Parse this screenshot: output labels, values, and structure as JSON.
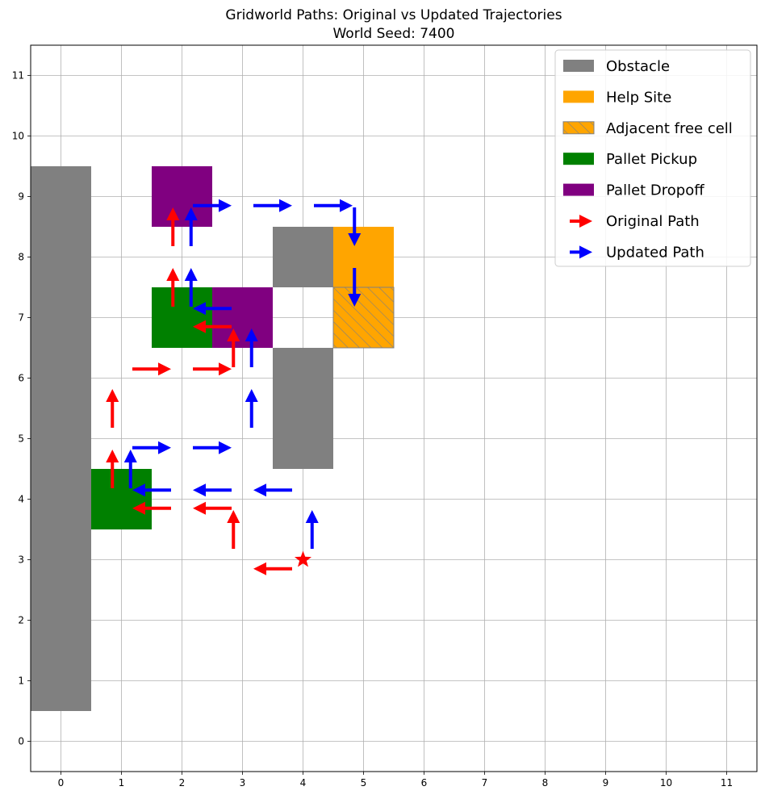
{
  "chart_data": {
    "type": "gridworld",
    "title_line1": "Gridworld Paths: Original vs Updated Trajectories",
    "title_line2": "World Seed: 7400",
    "xlim": [
      -0.5,
      11.5
    ],
    "ylim": [
      -0.5,
      11.5
    ],
    "xticks": [
      "0",
      "1",
      "2",
      "3",
      "4",
      "5",
      "6",
      "7",
      "8",
      "9",
      "10",
      "11"
    ],
    "yticks": [
      "0",
      "1",
      "2",
      "3",
      "4",
      "5",
      "6",
      "7",
      "8",
      "9",
      "10",
      "11"
    ],
    "grid": true,
    "legend_position": "upper-right",
    "colors": {
      "obstacle": "#808080",
      "help_site": "#FFA500",
      "pallet_pickup": "#008000",
      "pallet_dropoff": "#800080",
      "original_path": "#FF0000",
      "updated_path": "#0000FF",
      "grid": "#b0b0b0"
    },
    "legend": [
      {
        "key": "obstacle",
        "label": "Obstacle"
      },
      {
        "key": "help_site",
        "label": "Help Site"
      },
      {
        "key": "adjacent",
        "label": "Adjacent free cell"
      },
      {
        "key": "pallet_pickup",
        "label": "Pallet Pickup"
      },
      {
        "key": "pallet_dropoff",
        "label": "Pallet Dropoff"
      },
      {
        "key": "original_path",
        "label": "Original Path"
      },
      {
        "key": "updated_path",
        "label": "Updated Path"
      }
    ],
    "obstacles": [
      [
        0,
        1
      ],
      [
        0,
        2
      ],
      [
        0,
        3
      ],
      [
        0,
        4
      ],
      [
        0,
        5
      ],
      [
        0,
        6
      ],
      [
        0,
        7
      ],
      [
        0,
        8
      ],
      [
        0,
        9
      ],
      [
        4,
        8
      ],
      [
        4,
        5
      ],
      [
        4,
        6
      ]
    ],
    "help_sites": [
      [
        5,
        8
      ]
    ],
    "adjacent_free_cells": [
      [
        5,
        7
      ]
    ],
    "pallet_pickups": [
      [
        1,
        4
      ],
      [
        2,
        7
      ]
    ],
    "pallet_dropoffs": [
      [
        2,
        9
      ],
      [
        3,
        7
      ]
    ],
    "start_marker": [
      4,
      3
    ],
    "original_path": [
      [
        4,
        3
      ],
      [
        3,
        3
      ],
      [
        3,
        4
      ],
      [
        2,
        4
      ],
      [
        1,
        4
      ],
      [
        1,
        5
      ],
      [
        1,
        6
      ],
      [
        2,
        6
      ],
      [
        3,
        6
      ],
      [
        3,
        7
      ],
      [
        2,
        7
      ],
      [
        2,
        8
      ],
      [
        2,
        9
      ]
    ],
    "updated_path": [
      [
        4,
        3
      ],
      [
        4,
        4
      ],
      [
        3,
        4
      ],
      [
        2,
        4
      ],
      [
        1,
        4
      ],
      [
        1,
        5
      ],
      [
        2,
        5
      ],
      [
        3,
        5
      ],
      [
        3,
        6
      ],
      [
        3,
        7
      ],
      [
        2,
        7
      ],
      [
        2,
        8
      ],
      [
        2,
        9
      ],
      [
        3,
        9
      ],
      [
        4,
        9
      ],
      [
        5,
        9
      ],
      [
        5,
        8
      ],
      [
        5,
        7
      ]
    ]
  }
}
